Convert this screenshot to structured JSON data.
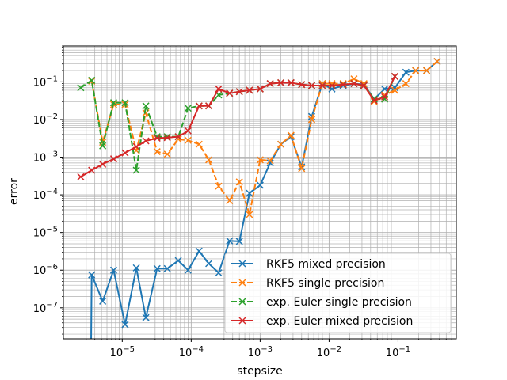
{
  "chart_data": {
    "type": "line",
    "title": "",
    "xlabel": "stepsize",
    "ylabel": "error",
    "xscale": "log",
    "yscale": "log",
    "xlim": [
      1.4e-06,
      0.7
    ],
    "ylim": [
      1.5e-08,
      0.9
    ],
    "grid": "major and minor",
    "legend_position": "lower-right",
    "x_ticks": [
      {
        "value": 1e-05,
        "base": "10",
        "exp": "−5"
      },
      {
        "value": 0.0001,
        "base": "10",
        "exp": "−4"
      },
      {
        "value": 0.001,
        "base": "10",
        "exp": "−3"
      },
      {
        "value": 0.01,
        "base": "10",
        "exp": "−2"
      },
      {
        "value": 0.1,
        "base": "10",
        "exp": "−1"
      }
    ],
    "y_ticks": [
      {
        "value": 1e-07,
        "base": "10",
        "exp": "−7"
      },
      {
        "value": 1e-06,
        "base": "10",
        "exp": "−6"
      },
      {
        "value": 1e-05,
        "base": "10",
        "exp": "−5"
      },
      {
        "value": 0.0001,
        "base": "10",
        "exp": "−4"
      },
      {
        "value": 0.001,
        "base": "10",
        "exp": "−3"
      },
      {
        "value": 0.01,
        "base": "10",
        "exp": "−2"
      },
      {
        "value": 0.1,
        "base": "10",
        "exp": "−1"
      }
    ],
    "series": [
      {
        "name": "RKF5 mixed precision",
        "color": "#1f77b4",
        "dash": "solid",
        "marker": "x",
        "points": [
          [
            3.5e-06,
            1e-09
          ],
          [
            3.6e-06,
            7.5e-07
          ],
          [
            5.2e-06,
            1.5e-07
          ],
          [
            7.5e-06,
            1e-06
          ],
          [
            1.1e-05,
            3.6e-08
          ],
          [
            1.6e-05,
            1.15e-06
          ],
          [
            2.2e-05,
            5.5e-08
          ],
          [
            3.2e-05,
            1.1e-06
          ],
          [
            4.5e-05,
            1.1e-06
          ],
          [
            6.5e-05,
            1.8e-06
          ],
          [
            9e-05,
            1e-06
          ],
          [
            0.00013,
            3.2e-06
          ],
          [
            0.00018,
            1.5e-06
          ],
          [
            0.00025,
            8.5e-07
          ],
          [
            0.00036,
            6e-06
          ],
          [
            0.0005,
            5.8e-06
          ],
          [
            0.0007,
            0.00011
          ],
          [
            0.001,
            0.00018
          ],
          [
            0.0014,
            0.0007
          ],
          [
            0.002,
            0.0022
          ],
          [
            0.0028,
            0.0035
          ],
          [
            0.004,
            0.00055
          ],
          [
            0.0056,
            0.012
          ],
          [
            0.008,
            0.09
          ],
          [
            0.011,
            0.065
          ],
          [
            0.016,
            0.08
          ],
          [
            0.023,
            0.09
          ],
          [
            0.032,
            0.085
          ],
          [
            0.045,
            0.035
          ],
          [
            0.064,
            0.065
          ],
          [
            0.09,
            0.07
          ],
          [
            0.13,
            0.18
          ],
          [
            0.18,
            0.2
          ],
          [
            0.26,
            0.2
          ],
          [
            0.37,
            0.35
          ]
        ]
      },
      {
        "name": "RKF5 single precision",
        "color": "#ff7f0e",
        "dash": "dashed",
        "marker": "x",
        "points": [
          [
            3.6e-06,
            0.105
          ],
          [
            5.2e-06,
            0.0025
          ],
          [
            7.5e-06,
            0.025
          ],
          [
            1.1e-05,
            0.025
          ],
          [
            1.6e-05,
            0.0015
          ],
          [
            2.2e-05,
            0.015
          ],
          [
            3.2e-05,
            0.0014
          ],
          [
            4.5e-05,
            0.0012
          ],
          [
            6.5e-05,
            0.003
          ],
          [
            9e-05,
            0.0028
          ],
          [
            0.00013,
            0.0022
          ],
          [
            0.00018,
            0.00085
          ],
          [
            0.00025,
            0.00017
          ],
          [
            0.00036,
            7e-05
          ],
          [
            0.0005,
            0.00022
          ],
          [
            0.0007,
            3e-05
          ],
          [
            0.001,
            0.00085
          ],
          [
            0.0014,
            0.0008
          ],
          [
            0.002,
            0.0022
          ],
          [
            0.0028,
            0.0038
          ],
          [
            0.004,
            0.0005
          ],
          [
            0.0056,
            0.01
          ],
          [
            0.008,
            0.09
          ],
          [
            0.011,
            0.09
          ],
          [
            0.016,
            0.09
          ],
          [
            0.023,
            0.12
          ],
          [
            0.032,
            0.09
          ],
          [
            0.045,
            0.03
          ],
          [
            0.064,
            0.045
          ],
          [
            0.09,
            0.06
          ],
          [
            0.13,
            0.09
          ],
          [
            0.18,
            0.2
          ],
          [
            0.26,
            0.2
          ],
          [
            0.37,
            0.35
          ]
        ]
      },
      {
        "name": "exp. Euler single precision",
        "color": "#2ca02c",
        "dash": "dashed",
        "marker": "x",
        "points": [
          [
            2.5e-06,
            0.07
          ],
          [
            3.6e-06,
            0.11
          ],
          [
            5.2e-06,
            0.002
          ],
          [
            7.5e-06,
            0.028
          ],
          [
            1.1e-05,
            0.028
          ],
          [
            1.6e-05,
            0.00045
          ],
          [
            2.2e-05,
            0.023
          ],
          [
            3.2e-05,
            0.0035
          ],
          [
            4.5e-05,
            0.0035
          ],
          [
            6.5e-05,
            0.0035
          ],
          [
            9e-05,
            0.02
          ],
          [
            0.00013,
            0.023
          ],
          [
            0.00018,
            0.023
          ],
          [
            0.00025,
            0.045
          ],
          [
            0.00036,
            0.05
          ],
          [
            0.0005,
            0.055
          ],
          [
            0.0007,
            0.06
          ],
          [
            0.001,
            0.065
          ],
          [
            0.0014,
            0.09
          ],
          [
            0.002,
            0.095
          ],
          [
            0.0028,
            0.095
          ],
          [
            0.004,
            0.085
          ],
          [
            0.0056,
            0.08
          ],
          [
            0.008,
            0.08
          ],
          [
            0.011,
            0.08
          ],
          [
            0.016,
            0.085
          ],
          [
            0.023,
            0.09
          ],
          [
            0.032,
            0.08
          ],
          [
            0.045,
            0.035
          ],
          [
            0.064,
            0.035
          ],
          [
            0.09,
            0.14
          ]
        ]
      },
      {
        "name": "exp. Euler mixed precision",
        "color": "#d62728",
        "dash": "solid",
        "marker": "x",
        "points": [
          [
            2.5e-06,
            0.0003
          ],
          [
            3.6e-06,
            0.00045
          ],
          [
            5.2e-06,
            0.00065
          ],
          [
            7.5e-06,
            0.0009
          ],
          [
            1.1e-05,
            0.0013
          ],
          [
            1.6e-05,
            0.0019
          ],
          [
            2.2e-05,
            0.0027
          ],
          [
            3.2e-05,
            0.0032
          ],
          [
            4.5e-05,
            0.0033
          ],
          [
            6.5e-05,
            0.0035
          ],
          [
            9e-05,
            0.005
          ],
          [
            0.00013,
            0.023
          ],
          [
            0.00018,
            0.023
          ],
          [
            0.00025,
            0.065
          ],
          [
            0.00036,
            0.05
          ],
          [
            0.0005,
            0.055
          ],
          [
            0.0007,
            0.06
          ],
          [
            0.001,
            0.065
          ],
          [
            0.0014,
            0.09
          ],
          [
            0.002,
            0.095
          ],
          [
            0.0028,
            0.095
          ],
          [
            0.004,
            0.085
          ],
          [
            0.0056,
            0.08
          ],
          [
            0.008,
            0.08
          ],
          [
            0.011,
            0.08
          ],
          [
            0.016,
            0.085
          ],
          [
            0.023,
            0.09
          ],
          [
            0.032,
            0.08
          ],
          [
            0.045,
            0.032
          ],
          [
            0.064,
            0.04
          ],
          [
            0.09,
            0.14
          ]
        ]
      }
    ]
  }
}
